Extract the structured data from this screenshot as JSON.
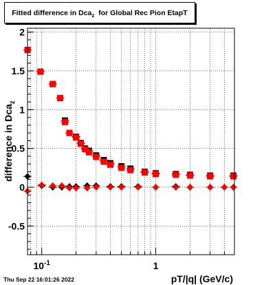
{
  "title": {
    "main": "Fitted difference in Dca",
    "sub": "z",
    "rest": "  for Global Rec Pion EtapT"
  },
  "timestamp": "Thu Sep 22 16:01:26 2022",
  "chart_data": {
    "type": "scatter",
    "title": "Fitted difference in Dca_z  for Global Rec Pion EtapT",
    "xlabel": "pT/|q| (GeV/c)",
    "ylabel_main": "difference in Dca",
    "ylabel_sub": "z",
    "xscale": "log",
    "xlim": [
      0.075,
      4.9
    ],
    "ylim": [
      -0.87,
      2.05
    ],
    "grid": true,
    "x_tick_labels": [
      {
        "value": 0.1,
        "base": "10",
        "exp": "-1"
      },
      {
        "value": 1,
        "base": "1",
        "exp": ""
      }
    ],
    "y_ticks": [
      -0.5,
      0,
      0.5,
      1,
      1.5,
      2
    ],
    "series": [
      {
        "color": "#000000",
        "marker": "diamond",
        "x": [
          0.075,
          0.1,
          0.125,
          0.15,
          0.175,
          0.2,
          0.25,
          0.3,
          0.4,
          0.5,
          0.7,
          1.0,
          1.5,
          2.0,
          3.0,
          4.0,
          4.8
        ],
        "y": [
          0.14,
          0.02,
          0.0,
          0.0,
          0.01,
          0.01,
          0.02,
          0.02,
          0.01,
          0.01,
          0.01,
          0.0,
          0.01,
          0.0,
          0.0,
          0.0,
          0.0
        ]
      },
      {
        "color": "#ff0000",
        "marker": "diamond",
        "x": [
          0.075,
          0.1,
          0.125,
          0.15,
          0.175,
          0.2,
          0.25,
          0.3,
          0.4,
          0.5,
          0.7,
          1.0,
          1.5,
          2.0,
          3.0,
          4.0,
          4.8
        ],
        "y": [
          -0.05,
          0.03,
          0.02,
          0.02,
          -0.01,
          -0.01,
          -0.01,
          0.0,
          0.0,
          0.0,
          0.0,
          0.0,
          0.0,
          0.0,
          0.0,
          0.0,
          0.0
        ]
      },
      {
        "color": "#000000",
        "marker": "square",
        "x": [
          0.075,
          0.0975,
          0.125,
          0.145,
          0.16,
          0.175,
          0.2,
          0.22,
          0.24,
          0.26,
          0.3,
          0.35,
          0.4,
          0.5,
          0.6,
          0.8,
          1.0,
          1.5,
          2.0,
          3.0,
          4.8
        ],
        "y": [
          1.77,
          1.49,
          1.33,
          1.15,
          0.86,
          0.7,
          0.65,
          0.57,
          0.5,
          0.47,
          0.41,
          0.35,
          0.31,
          0.27,
          0.24,
          0.2,
          0.18,
          0.17,
          0.16,
          0.15,
          0.15
        ]
      },
      {
        "color": "#ff0000",
        "marker": "square",
        "x": [
          0.075,
          0.0975,
          0.125,
          0.145,
          0.16,
          0.175,
          0.2,
          0.22,
          0.24,
          0.26,
          0.3,
          0.35,
          0.4,
          0.5,
          0.6,
          0.8,
          1.0,
          1.5,
          2.0,
          3.0,
          4.8
        ],
        "y": [
          1.77,
          1.49,
          1.33,
          1.15,
          0.84,
          0.7,
          0.64,
          0.56,
          0.49,
          0.45,
          0.39,
          0.33,
          0.29,
          0.25,
          0.22,
          0.19,
          0.17,
          0.16,
          0.15,
          0.14,
          0.14
        ]
      }
    ]
  }
}
